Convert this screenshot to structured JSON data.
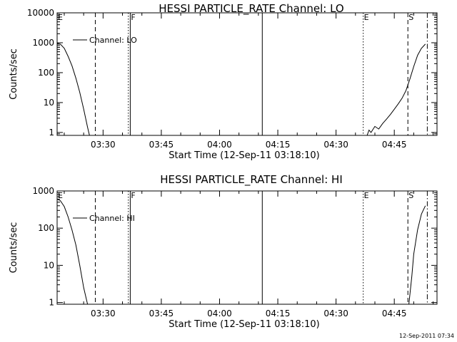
{
  "footer_timestamp": "12-Sep-2011 07:34",
  "chart_data": [
    {
      "type": "line",
      "title": "HESSI PARTICLE_RATE Channel: LO",
      "xlabel": "Start Time (12-Sep-11 03:18:10)",
      "ylabel": "Counts/sec",
      "y_scale": "log",
      "xlim": [
        "03:18:10",
        "04:56:00"
      ],
      "ylim": [
        0.8,
        10000
      ],
      "x_ticks": [
        "03:30",
        "03:45",
        "04:00",
        "04:15",
        "04:30",
        "04:45"
      ],
      "y_ticks": [
        {
          "value": 1,
          "label": "1"
        },
        {
          "value": 10,
          "label": "10"
        },
        {
          "value": 100,
          "label": "100"
        },
        {
          "value": 1000,
          "label": "1000"
        },
        {
          "value": 10000,
          "label": "10000"
        }
      ],
      "legend": {
        "placement": "top-left",
        "entries": [
          "Channel: LO"
        ]
      },
      "series": [
        {
          "name": "Channel: LO",
          "segments": [
            [
              [
                "03:18:10",
                950
              ],
              [
                "03:19:00",
                900
              ],
              [
                "03:20:00",
                650
              ],
              [
                "03:21:00",
                350
              ],
              [
                "03:22:00",
                170
              ],
              [
                "03:23:00",
                65
              ],
              [
                "03:24:00",
                22
              ],
              [
                "03:25:00",
                6
              ],
              [
                "03:26:00",
                1.5
              ],
              [
                "03:26:30",
                0.8
              ]
            ],
            [
              [
                "04:38:00",
                0.8
              ],
              [
                "04:38:30",
                1.2
              ],
              [
                "04:39:00",
                1.0
              ],
              [
                "04:40:00",
                1.6
              ],
              [
                "04:41:00",
                1.3
              ],
              [
                "04:42:00",
                2.0
              ],
              [
                "04:43:00",
                2.8
              ],
              [
                "04:44:00",
                4.0
              ],
              [
                "04:45:00",
                6.0
              ],
              [
                "04:46:00",
                9.0
              ],
              [
                "04:47:00",
                14
              ],
              [
                "04:48:00",
                25
              ],
              [
                "04:49:00",
                60
              ],
              [
                "04:50:00",
                160
              ],
              [
                "04:51:00",
                380
              ],
              [
                "04:52:00",
                650
              ],
              [
                "04:53:00",
                900
              ]
            ]
          ]
        }
      ],
      "markers": [
        {
          "time": "03:18:10",
          "label": "E",
          "style": "dotted"
        },
        {
          "time": "03:28:00",
          "label": "",
          "style": "dashed"
        },
        {
          "time": "03:36:30",
          "label": "",
          "style": "dotted"
        },
        {
          "time": "03:37:00",
          "label": "F",
          "style": "solid"
        },
        {
          "time": "04:11:00",
          "label": "",
          "style": "solid"
        },
        {
          "time": "04:37:00",
          "label": "E",
          "style": "dotted"
        },
        {
          "time": "04:48:30",
          "label": "S",
          "style": "dashed"
        },
        {
          "time": "04:53:30",
          "label": "",
          "style": "dashdot"
        }
      ]
    },
    {
      "type": "line",
      "title": "HESSI PARTICLE_RATE Channel: HI",
      "xlabel": "Start Time (12-Sep-11 03:18:10)",
      "ylabel": "Counts/sec",
      "y_scale": "log",
      "xlim": [
        "03:18:10",
        "04:56:00"
      ],
      "ylim": [
        0.9,
        1000
      ],
      "x_ticks": [
        "03:30",
        "03:45",
        "04:00",
        "04:15",
        "04:30",
        "04:45"
      ],
      "y_ticks": [
        {
          "value": 1,
          "label": "1"
        },
        {
          "value": 10,
          "label": "10"
        },
        {
          "value": 100,
          "label": "100"
        },
        {
          "value": 1000,
          "label": "1000"
        }
      ],
      "legend": {
        "placement": "top-left",
        "entries": [
          "Channel: HI"
        ]
      },
      "series": [
        {
          "name": "Channel: HI",
          "segments": [
            [
              [
                "03:18:10",
                600
              ],
              [
                "03:19:00",
                550
              ],
              [
                "03:20:00",
                380
              ],
              [
                "03:21:00",
                200
              ],
              [
                "03:22:00",
                90
              ],
              [
                "03:23:00",
                35
              ],
              [
                "03:24:00",
                10
              ],
              [
                "03:25:00",
                2.5
              ],
              [
                "03:26:00",
                0.9
              ]
            ],
            [
              [
                "04:48:45",
                0.9
              ],
              [
                "04:49:30",
                5
              ],
              [
                "04:50:00",
                20
              ],
              [
                "04:51:00",
                90
              ],
              [
                "04:52:00",
                240
              ],
              [
                "04:53:00",
                400
              ]
            ]
          ]
        }
      ],
      "markers": [
        {
          "time": "03:18:10",
          "label": "E",
          "style": "dotted"
        },
        {
          "time": "03:28:00",
          "label": "",
          "style": "dashed"
        },
        {
          "time": "03:36:30",
          "label": "",
          "style": "dotted"
        },
        {
          "time": "03:37:00",
          "label": "F",
          "style": "solid"
        },
        {
          "time": "04:11:00",
          "label": "",
          "style": "solid"
        },
        {
          "time": "04:37:00",
          "label": "E",
          "style": "dotted"
        },
        {
          "time": "04:48:30",
          "label": "S",
          "style": "dashed"
        },
        {
          "time": "04:53:30",
          "label": "",
          "style": "dashdot"
        }
      ]
    }
  ]
}
